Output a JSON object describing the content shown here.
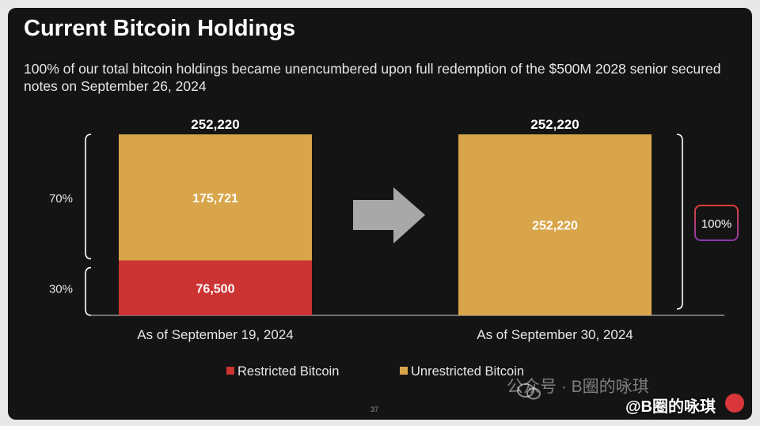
{
  "slide": {
    "title": "Current Bitcoin Holdings",
    "subtitle": "100% of our total bitcoin holdings became unencumbered upon full redemption of the $500M 2028 senior secured notes on September 26, 2024",
    "page_number": "37"
  },
  "colors": {
    "restricted": "#cc3333",
    "unrestricted": "#d9a54a",
    "background": "#141414",
    "arrow": "#a8a8a8"
  },
  "chart_data": {
    "type": "bar",
    "stacked": true,
    "title": "Current Bitcoin Holdings",
    "categories": [
      "As of September 19, 2024",
      "As of September 30, 2024"
    ],
    "series": [
      {
        "name": "Restricted Bitcoin",
        "values": [
          76500,
          0
        ],
        "labels": [
          "76,500",
          ""
        ],
        "color": "#cc3333"
      },
      {
        "name": "Unrestricted Bitcoin",
        "values": [
          175721,
          252220
        ],
        "labels": [
          "175,721",
          "252,220"
        ],
        "color": "#d9a54a"
      }
    ],
    "totals": [
      252220,
      252220
    ],
    "total_labels": [
      "252,220",
      "252,220"
    ],
    "ylim": [
      0,
      252220
    ],
    "bracket_labels_left": [
      "70%",
      "30%"
    ],
    "bracket_label_right": "100%",
    "legend": [
      "Restricted Bitcoin",
      "Unrestricted Bitcoin"
    ],
    "legend_position": "bottom"
  },
  "watermark": {
    "text": "公众号 · B圈的咏琪",
    "handle": "@B圈的咏琪"
  }
}
